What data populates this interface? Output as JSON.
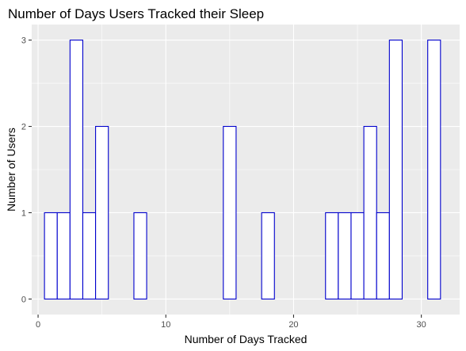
{
  "chart_data": {
    "type": "bar",
    "title": "Number of Days Users Tracked their Sleep",
    "xlabel": "Number of Days Tracked",
    "ylabel": "Number of Users",
    "xlim": [
      -0.5,
      33
    ],
    "ylim": [
      -0.18,
      3.18
    ],
    "xticks": [
      0,
      10,
      20,
      30
    ],
    "yticks": [
      0,
      1,
      2,
      3
    ],
    "bin_width": 1,
    "bins": [
      {
        "x": 1,
        "count": 1
      },
      {
        "x": 2,
        "count": 1
      },
      {
        "x": 3,
        "count": 3
      },
      {
        "x": 4,
        "count": 1
      },
      {
        "x": 5,
        "count": 2
      },
      {
        "x": 6,
        "count": 0
      },
      {
        "x": 7,
        "count": 0
      },
      {
        "x": 8,
        "count": 1
      },
      {
        "x": 9,
        "count": 0
      },
      {
        "x": 10,
        "count": 0
      },
      {
        "x": 11,
        "count": 0
      },
      {
        "x": 12,
        "count": 0
      },
      {
        "x": 13,
        "count": 0
      },
      {
        "x": 14,
        "count": 0
      },
      {
        "x": 15,
        "count": 2
      },
      {
        "x": 16,
        "count": 0
      },
      {
        "x": 17,
        "count": 0
      },
      {
        "x": 18,
        "count": 1
      },
      {
        "x": 19,
        "count": 0
      },
      {
        "x": 20,
        "count": 0
      },
      {
        "x": 21,
        "count": 0
      },
      {
        "x": 22,
        "count": 0
      },
      {
        "x": 23,
        "count": 1
      },
      {
        "x": 24,
        "count": 1
      },
      {
        "x": 25,
        "count": 1
      },
      {
        "x": 26,
        "count": 2
      },
      {
        "x": 27,
        "count": 1
      },
      {
        "x": 28,
        "count": 3
      },
      {
        "x": 29,
        "count": 0
      },
      {
        "x": 30,
        "count": 0
      },
      {
        "x": 31,
        "count": 3
      }
    ],
    "bar_fill": "#ffffff",
    "bar_outline": "#0000cd",
    "panel_background": "#ebebeb",
    "grid_color": "#ffffff",
    "grid": true,
    "legend": "none"
  }
}
